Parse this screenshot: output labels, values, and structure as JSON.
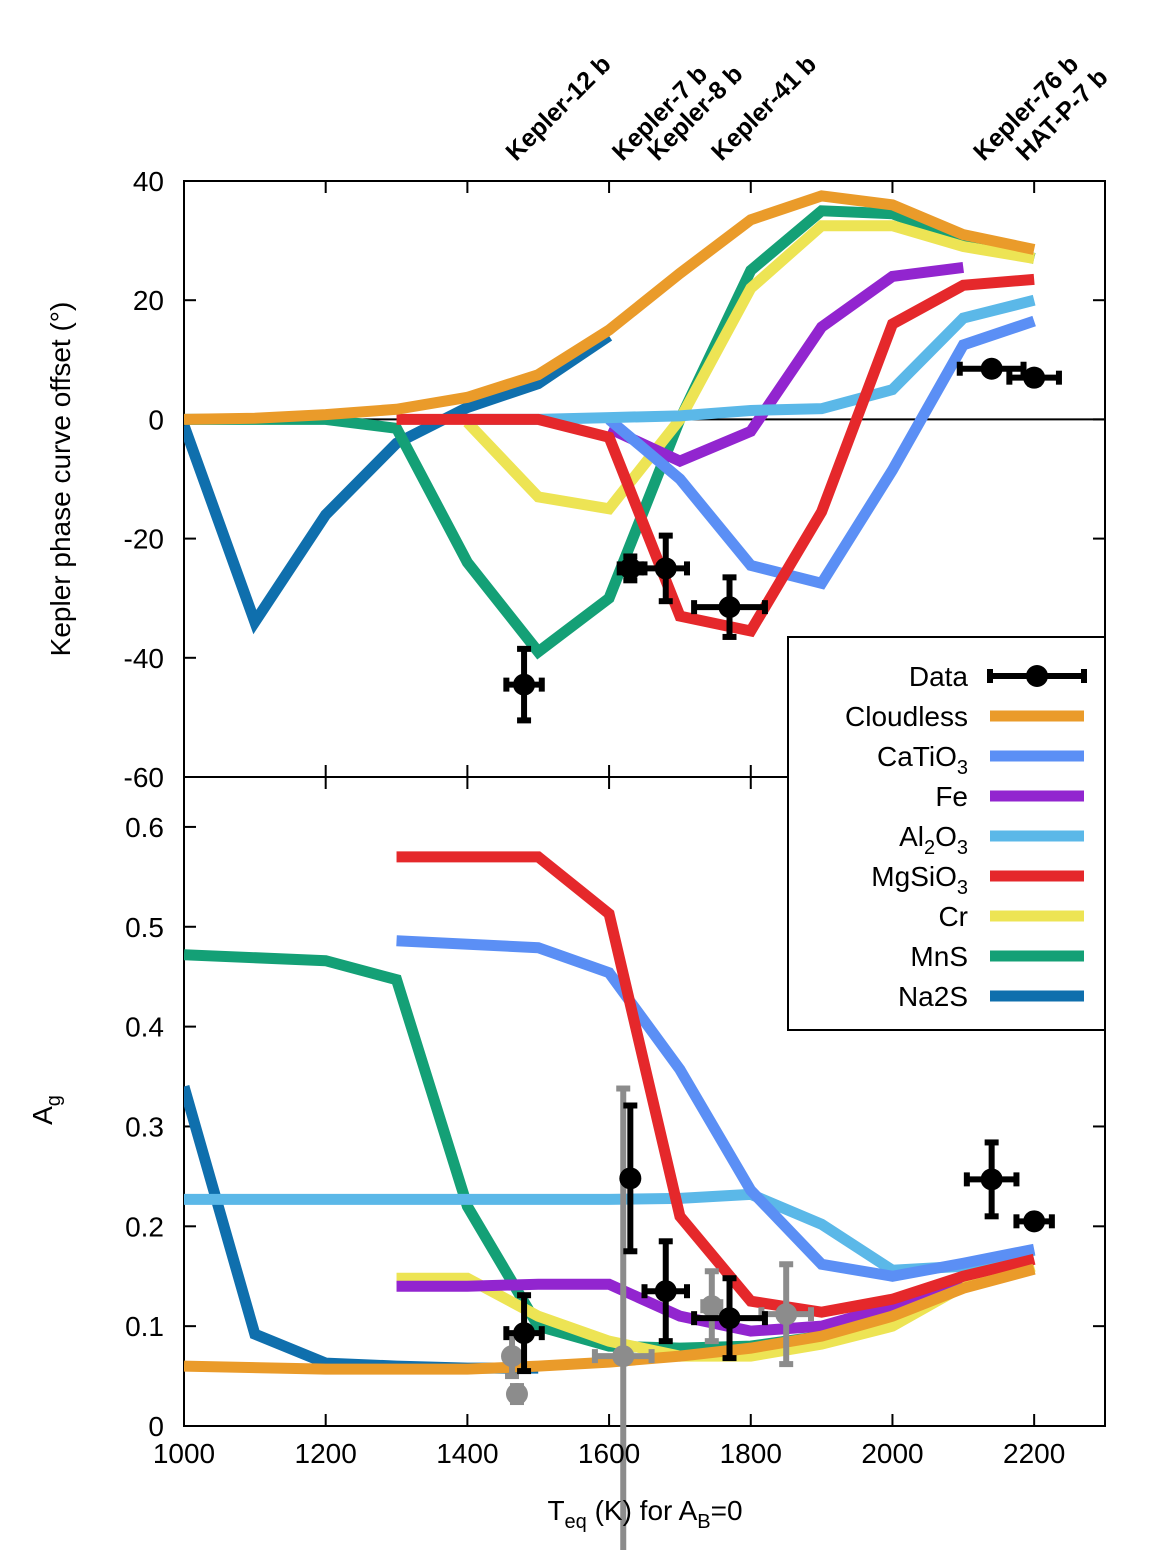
{
  "chart_data": {
    "type": "line",
    "x_axis": {
      "label": "T",
      "label_sub": "eq",
      "label_mid": " (K) for A",
      "label_sub2": "B",
      "label_end": "=0",
      "range": [
        1000,
        2300
      ],
      "ticks": [
        1000,
        1200,
        1400,
        1600,
        1800,
        2000,
        2200
      ],
      "tick_labels": [
        "1000",
        "1200",
        "1400",
        "1600",
        "1800",
        "2000",
        "2200"
      ]
    },
    "planets": [
      {
        "name": "Kepler-12 b",
        "teq": 1480
      },
      {
        "name": "Kepler-7 b",
        "teq": 1630
      },
      {
        "name": "Kepler-8 b",
        "teq": 1680
      },
      {
        "name": "Kepler-41 b",
        "teq": 1770
      },
      {
        "name": "Kepler-76 b",
        "teq": 2140
      },
      {
        "name": "HAT-P-7 b",
        "teq": 2200
      }
    ],
    "legend": {
      "placement": "right, spanning both panels",
      "entries": [
        {
          "label": "Data",
          "color": "#000000",
          "kind": "data"
        },
        {
          "label": "Cloudless",
          "color": "#ea9b2a"
        },
        {
          "label": "CaTiO",
          "sub": "3",
          "color": "#5b8ff5"
        },
        {
          "label": "Fe",
          "color": "#9225cf"
        },
        {
          "label": "Al",
          "sub": "2",
          "mid": "O",
          "sub2": "3",
          "color": "#5bb8e8"
        },
        {
          "label": "MgSiO",
          "sub": "3",
          "color": "#e5282b"
        },
        {
          "label": "Cr",
          "color": "#ede454"
        },
        {
          "label": "MnS",
          "color": "#14a076"
        },
        {
          "label": "Na2S",
          "color": "#0f6fad"
        }
      ]
    },
    "panels": [
      {
        "name": "top",
        "ylabel": "Kepler phase curve offset (°)",
        "ylim": [
          -60,
          40
        ],
        "yticks": [
          40,
          20,
          0,
          -20,
          -40,
          -60
        ],
        "ytick_labels": [
          "40",
          "20",
          "0",
          "-20",
          "-40",
          "-60"
        ],
        "zero_line": true,
        "series": [
          {
            "legend": "Na2S",
            "x": [
              1000,
              1100,
              1200,
              1300,
              1400,
              1500,
              1600
            ],
            "y": [
              -1,
              -34,
              -16,
              -4,
              2,
              6,
              14
            ]
          },
          {
            "legend": "MnS",
            "x": [
              1000,
              1200,
              1300,
              1400,
              1500,
              1600,
              1700,
              1800,
              1900,
              2000,
              2100,
              2200
            ],
            "y": [
              0,
              0,
              -1.5,
              -24,
              -39,
              -30,
              0,
              25,
              35,
              34.5,
              30,
              27
            ]
          },
          {
            "legend": "Cr",
            "x": [
              1400,
              1500,
              1600,
              1700,
              1800,
              1900,
              2000,
              2100,
              2200
            ],
            "y": [
              -0.5,
              -13,
              -15,
              0,
              22,
              32.5,
              32.5,
              29,
              27
            ]
          },
          {
            "legend": "Fe",
            "x": [
              1600,
              1700,
              1800,
              1900,
              2000,
              2100
            ],
            "y": [
              -1.5,
              -7,
              -2,
              15.5,
              24,
              25.5
            ]
          },
          {
            "legend": "CaTiO3",
            "x": [
              1600,
              1700,
              1800,
              1900,
              2000,
              2100,
              2200
            ],
            "y": [
              0,
              -10,
              -24.5,
              -27.5,
              -8.5,
              12.5,
              16.5
            ]
          },
          {
            "legend": "Al2O3",
            "x": [
              1400,
              1500,
              1600,
              1700,
              1800,
              1900,
              2000,
              2100,
              2200
            ],
            "y": [
              0,
              0,
              0.3,
              0.6,
              1.5,
              1.8,
              5,
              17,
              20
            ]
          },
          {
            "legend": "MgSiO3",
            "x": [
              1300,
              1400,
              1500,
              1600,
              1700,
              1800,
              1900,
              2000,
              2100,
              2200
            ],
            "y": [
              0,
              0,
              0,
              -3,
              -33,
              -35.5,
              -15.5,
              16,
              22.5,
              23.5
            ]
          },
          {
            "legend": "Cloudless",
            "x": [
              1000,
              1100,
              1200,
              1300,
              1400,
              1500,
              1600,
              1700,
              1800,
              1900,
              2000,
              2100,
              2200
            ],
            "y": [
              0,
              0.2,
              0.8,
              1.7,
              3.7,
              7.5,
              15,
              24.5,
              33.5,
              37.5,
              36,
              31,
              28.5
            ]
          }
        ],
        "data": [
          {
            "x": 1480,
            "y": -44.5,
            "xerr": 25,
            "yerr": 6
          },
          {
            "x": 1630,
            "y": -25,
            "xerr": 15,
            "yerr": 2
          },
          {
            "x": 1680,
            "y": -25,
            "xerr": 30,
            "yerr": 5.5
          },
          {
            "x": 1770,
            "y": -31.5,
            "xerr": 50,
            "yerr": 5
          },
          {
            "x": 2140,
            "y": 8.5,
            "xerr": 45,
            "yerr": 0.8
          },
          {
            "x": 2200,
            "y": 7,
            "xerr": 35,
            "yerr": 1
          }
        ]
      },
      {
        "name": "bottom",
        "ylabel": "A",
        "ylabel_sub": "g",
        "ylim": [
          0,
          0.65
        ],
        "yticks": [
          0,
          0.1,
          0.2,
          0.3,
          0.4,
          0.5,
          0.6
        ],
        "ytick_labels": [
          "0",
          "0.1",
          "0.2",
          "0.3",
          "0.4",
          "0.5",
          "0.6"
        ],
        "series": [
          {
            "legend": "Na2S",
            "x": [
              1000,
              1100,
              1200,
              1300,
              1400,
              1500
            ],
            "y": [
              0.34,
              0.092,
              0.063,
              0.06,
              0.058,
              0.058
            ]
          },
          {
            "legend": "MnS",
            "x": [
              1000,
              1200,
              1300,
              1400,
              1500,
              1600,
              1700,
              1800,
              1900,
              2000
            ],
            "y": [
              0.472,
              0.466,
              0.447,
              0.22,
              0.1,
              0.08,
              0.078,
              0.08,
              0.09,
              0.11
            ]
          },
          {
            "legend": "Al2O3",
            "x": [
              1000,
              1200,
              1400,
              1600,
              1700,
              1800,
              1900,
              2000,
              2100,
              2200
            ],
            "y": [
              0.227,
              0.227,
              0.227,
              0.227,
              0.228,
              0.232,
              0.202,
              0.156,
              0.16,
              0.176
            ]
          },
          {
            "legend": "Cr",
            "x": [
              1300,
              1400,
              1500,
              1600,
              1700,
              1800,
              1900,
              2000,
              2100,
              2200
            ],
            "y": [
              0.148,
              0.148,
              0.11,
              0.085,
              0.07,
              0.07,
              0.082,
              0.1,
              0.14,
              0.16
            ]
          },
          {
            "legend": "Fe",
            "x": [
              1300,
              1400,
              1500,
              1600,
              1700,
              1800,
              1900,
              2000,
              2100
            ],
            "y": [
              0.14,
              0.14,
              0.142,
              0.142,
              0.11,
              0.095,
              0.1,
              0.12,
              0.14
            ]
          },
          {
            "legend": "CaTiO3",
            "x": [
              1300,
              1500,
              1600,
              1700,
              1800,
              1900,
              2000,
              2100,
              2200
            ],
            "y": [
              0.486,
              0.479,
              0.454,
              0.357,
              0.236,
              0.162,
              0.15,
              0.163,
              0.177
            ]
          },
          {
            "legend": "MgSiO3",
            "x": [
              1300,
              1500,
              1600,
              1700,
              1800,
              1900,
              2000,
              2100,
              2200
            ],
            "y": [
              0.57,
              0.57,
              0.513,
              0.21,
              0.125,
              0.114,
              0.127,
              0.15,
              0.167
            ]
          },
          {
            "legend": "Cloudless",
            "x": [
              1000,
              1200,
              1400,
              1500,
              1600,
              1700,
              1800,
              1900,
              2000,
              2100,
              2200
            ],
            "y": [
              0.06,
              0.057,
              0.057,
              0.06,
              0.064,
              0.07,
              0.078,
              0.09,
              0.11,
              0.138,
              0.157
            ]
          }
        ],
        "data_gray": [
          {
            "x": 1463,
            "y": 0.07,
            "xerr": 0,
            "yerr": 0.02
          },
          {
            "x": 1470,
            "y": 0.032,
            "xerr": 0,
            "yerr": 0.008
          },
          {
            "x": 1620,
            "y": 0.07,
            "xerr": 40,
            "yerr": 0.268
          },
          {
            "x": 1745,
            "y": 0.12,
            "xerr": 12,
            "yerr": 0.035
          },
          {
            "x": 1850,
            "y": 0.112,
            "xerr": 35,
            "yerr": 0.05
          }
        ],
        "data": [
          {
            "x": 1480,
            "y": 0.093,
            "xerr": 25,
            "yerr": 0.038
          },
          {
            "x": 1630,
            "y": 0.248,
            "xerr": 0,
            "yerr": 0.073
          },
          {
            "x": 1680,
            "y": 0.135,
            "xerr": 30,
            "yerr": 0.05
          },
          {
            "x": 1770,
            "y": 0.108,
            "xerr": 50,
            "yerr": 0.04
          },
          {
            "x": 2140,
            "y": 0.247,
            "xerr": 35,
            "yerr": 0.037
          },
          {
            "x": 2200,
            "y": 0.205,
            "xerr": 25,
            "yerr": 0.003
          }
        ]
      }
    ]
  }
}
